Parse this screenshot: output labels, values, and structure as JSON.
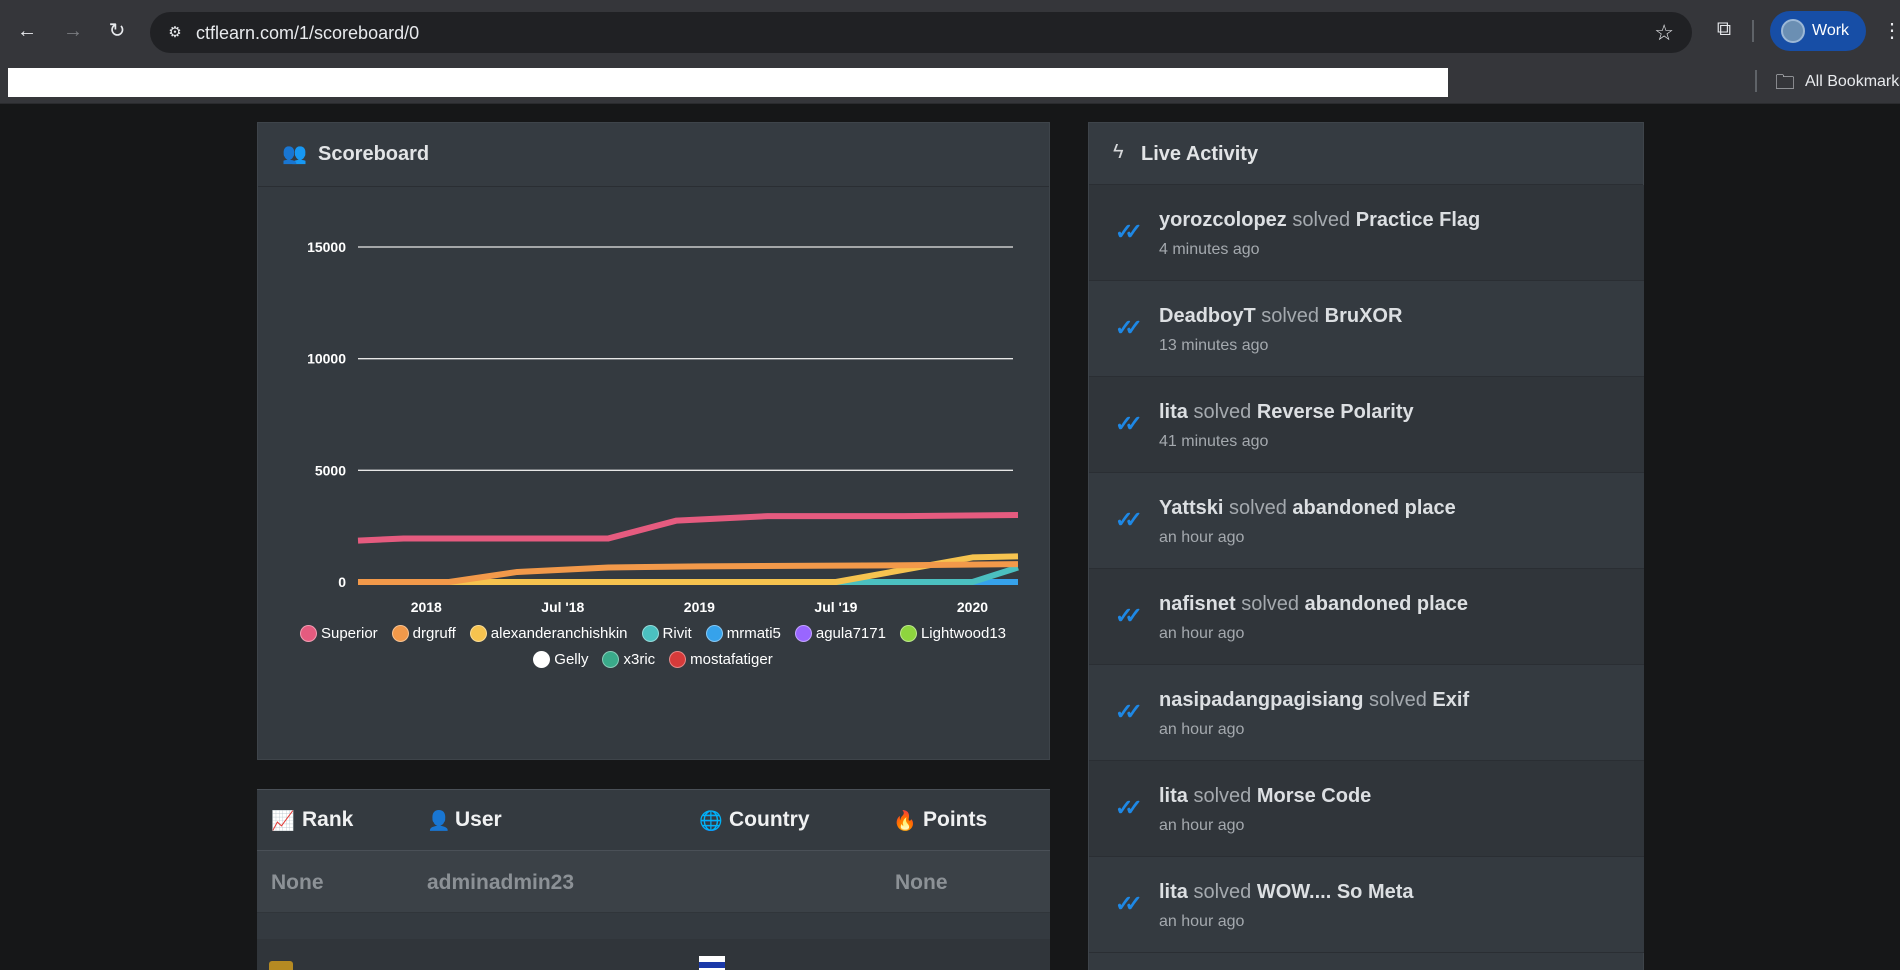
{
  "browser": {
    "url": "ctflearn.com/1/scoreboard/0",
    "profile_label": "Work",
    "bookmarks_label": "All Bookmarks"
  },
  "scoreboard": {
    "title": "Scoreboard"
  },
  "chart_data": {
    "type": "line",
    "x_ticks": [
      "2018",
      "Jul '18",
      "2019",
      "Jul '19",
      "2020"
    ],
    "y_ticks": [
      "0",
      "5000",
      "10000",
      "15000"
    ],
    "ylim": [
      0,
      15000
    ],
    "xlim": [
      "2017-10",
      "2020-03"
    ],
    "grid": true,
    "legend_position": "bottom",
    "series": [
      {
        "name": "Superior",
        "color": "#e55b7f",
        "points": [
          [
            "2017-10",
            1850
          ],
          [
            "2017-12",
            1950
          ],
          [
            "2018-05",
            1950
          ],
          [
            "2018-09",
            1950
          ],
          [
            "2018-12",
            2750
          ],
          [
            "2019-04",
            2950
          ],
          [
            "2019-10",
            2950
          ],
          [
            "2020-03",
            3000
          ]
        ]
      },
      {
        "name": "drgruff",
        "color": "#f2994a",
        "points": [
          [
            "2017-10",
            0
          ],
          [
            "2018-02",
            0
          ],
          [
            "2018-05",
            450
          ],
          [
            "2018-09",
            650
          ],
          [
            "2019-01",
            700
          ],
          [
            "2019-10",
            750
          ],
          [
            "2020-03",
            800
          ]
        ]
      },
      {
        "name": "alexanderanchishkin",
        "color": "#f6c34f",
        "points": [
          [
            "2017-10",
            0
          ],
          [
            "2019-07",
            0
          ],
          [
            "2020-01",
            1100
          ],
          [
            "2020-03",
            1150
          ]
        ]
      },
      {
        "name": "Rivit",
        "color": "#4bc0c0",
        "points": [
          [
            "2017-10",
            0
          ],
          [
            "2020-01",
            0
          ],
          [
            "2020-03",
            650
          ]
        ]
      },
      {
        "name": "mrmati5",
        "color": "#36a2eb",
        "points": [
          [
            "2017-10",
            0
          ],
          [
            "2020-03",
            0
          ]
        ]
      },
      {
        "name": "agula7171",
        "color": "#9966ff",
        "points": [
          [
            "2017-10",
            0
          ],
          [
            "2020-03",
            0
          ]
        ]
      },
      {
        "name": "Lightwood13",
        "color": "#8ed53e",
        "points": [
          [
            "2017-10",
            0
          ],
          [
            "2020-03",
            0
          ]
        ]
      },
      {
        "name": "Gelly",
        "color": "#ffffff",
        "points": [
          [
            "2017-10",
            0
          ],
          [
            "2020-03",
            0
          ]
        ]
      },
      {
        "name": "x3ric",
        "color": "#3aaa8a",
        "points": [
          [
            "2017-10",
            0
          ],
          [
            "2020-03",
            0
          ]
        ]
      },
      {
        "name": "mostafatiger",
        "color": "#d63a3a",
        "points": [
          [
            "2017-10",
            0
          ],
          [
            "2020-03",
            0
          ]
        ]
      }
    ]
  },
  "table": {
    "headers": {
      "rank": "Rank",
      "user": "User",
      "country": "Country",
      "points": "Points"
    },
    "rows": [
      {
        "rank": "None",
        "user": "adminadmin23",
        "country": "",
        "points": "None"
      }
    ]
  },
  "activity": {
    "title": "Live Activity",
    "items": [
      {
        "user": "yorozcolopez",
        "verb": "solved",
        "challenge": "Practice Flag",
        "time": "4 minutes ago"
      },
      {
        "user": "DeadboyT",
        "verb": "solved",
        "challenge": "BruXOR",
        "time": "13 minutes ago"
      },
      {
        "user": "lita",
        "verb": "solved",
        "challenge": "Reverse Polarity",
        "time": "41 minutes ago"
      },
      {
        "user": "Yattski",
        "verb": "solved",
        "challenge": "abandoned place",
        "time": "an hour ago"
      },
      {
        "user": "nafisnet",
        "verb": "solved",
        "challenge": "abandoned place",
        "time": "an hour ago"
      },
      {
        "user": "nasipadangpagisiang",
        "verb": "solved",
        "challenge": "Exif",
        "time": "an hour ago"
      },
      {
        "user": "lita",
        "verb": "solved",
        "challenge": "Morse Code",
        "time": "an hour ago"
      },
      {
        "user": "lita",
        "verb": "solved",
        "challenge": "WOW.... So Meta",
        "time": "an hour ago"
      }
    ]
  }
}
